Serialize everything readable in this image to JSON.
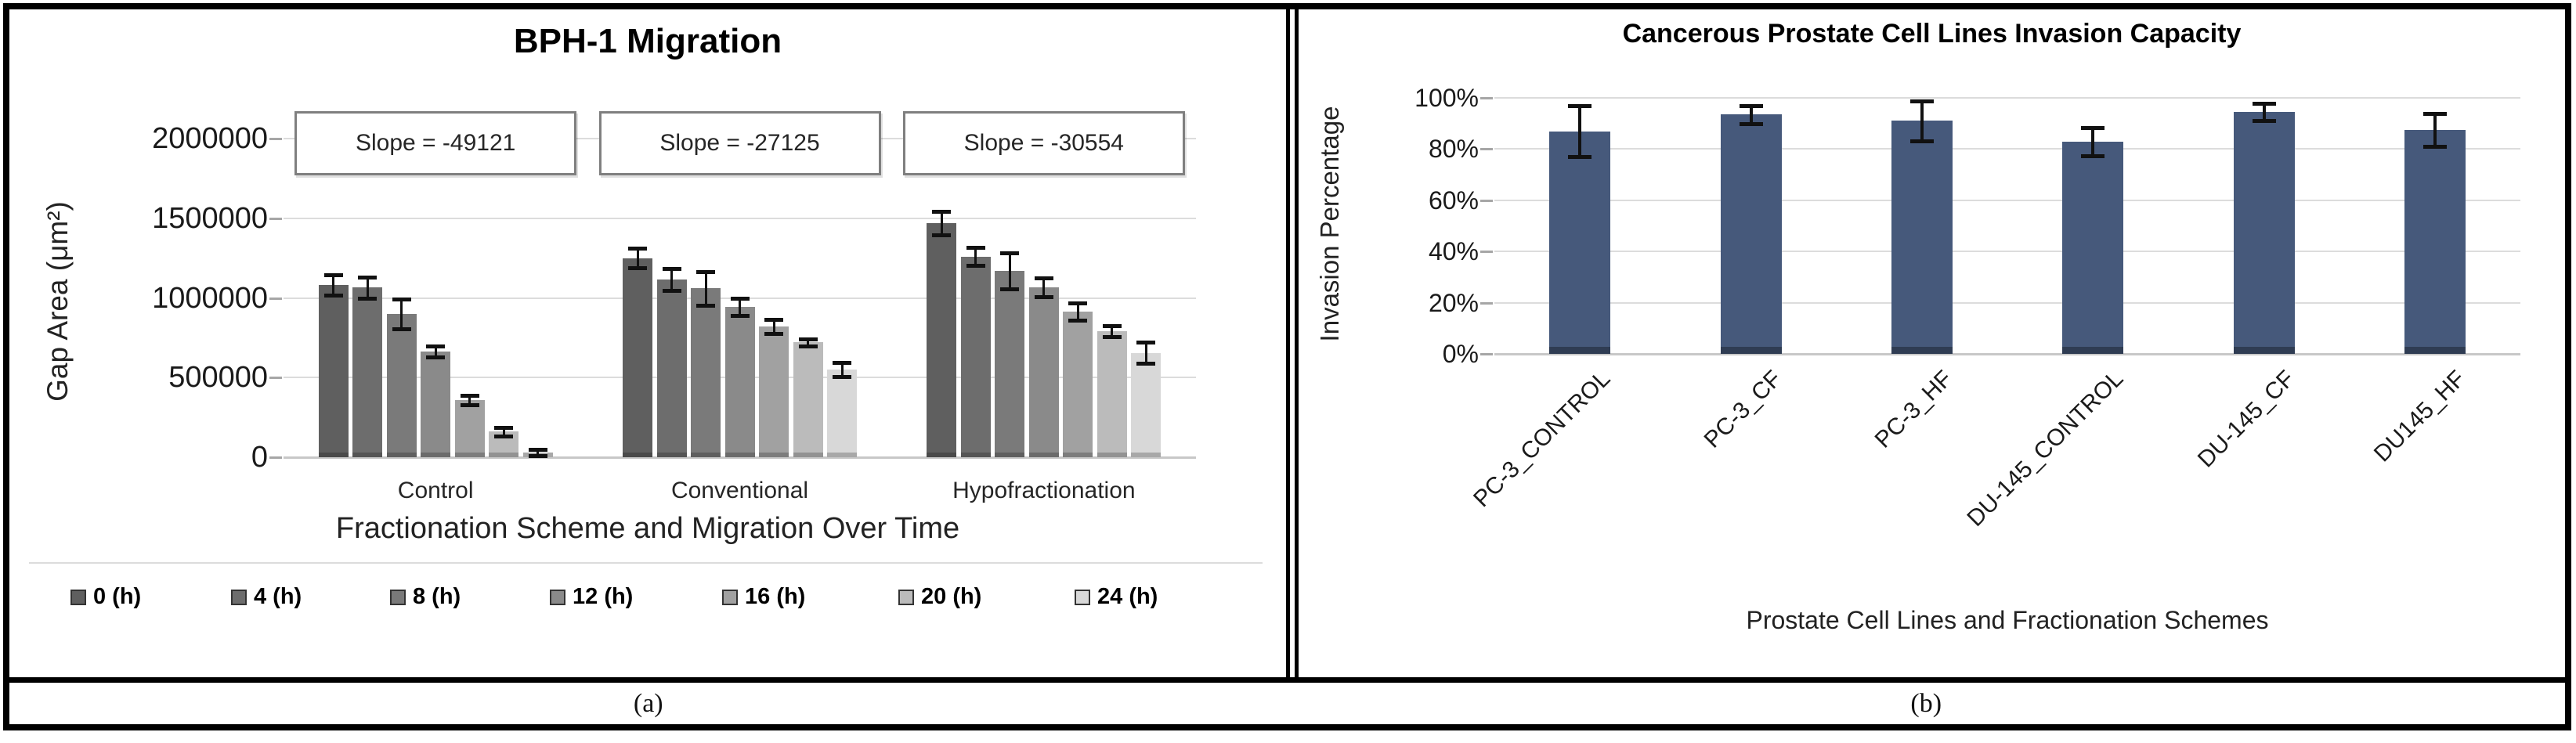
{
  "figure": {
    "captions": {
      "a": "(a)",
      "b": "(b)"
    }
  },
  "chart_data": [
    {
      "type": "bar",
      "panel": "a",
      "title": "BPH-1 Migration",
      "ylabel": "Gap Area (μm²)",
      "xlabel": "Fractionation Scheme and Migration Over Time",
      "ylim": [
        0,
        2000000
      ],
      "ytick_step": 500000,
      "ytick_labels": [
        "0",
        "500000",
        "1000000",
        "1500000",
        "2000000"
      ],
      "grid": true,
      "legend_position": "bottom",
      "categories": [
        "Control",
        "Conventional",
        "Hypofractionation"
      ],
      "annotations": [
        {
          "text": "Slope = -49121",
          "group": "Control"
        },
        {
          "text": "Slope = -27125",
          "group": "Conventional"
        },
        {
          "text": "Slope = -30554",
          "group": "Hypofractionation"
        }
      ],
      "series": [
        {
          "name": "0 (h)",
          "color": "#5F5F5F",
          "values": [
            1080000,
            1250000,
            1470000
          ],
          "errors": [
            65000,
            60000,
            75000
          ]
        },
        {
          "name": "4 (h)",
          "color": "#6D6D6D",
          "values": [
            1065000,
            1115000,
            1260000
          ],
          "errors": [
            65000,
            70000,
            55000
          ]
        },
        {
          "name": "8 (h)",
          "color": "#7A7A7A",
          "values": [
            900000,
            1060000,
            1170000
          ],
          "errors": [
            95000,
            105000,
            115000
          ]
        },
        {
          "name": "12 (h)",
          "color": "#8A8A8A",
          "values": [
            665000,
            945000,
            1065000
          ],
          "errors": [
            35000,
            55000,
            60000
          ]
        },
        {
          "name": "16 (h)",
          "color": "#A1A1A1",
          "values": [
            360000,
            820000,
            915000
          ],
          "errors": [
            30000,
            45000,
            55000
          ]
        },
        {
          "name": "20 (h)",
          "color": "#BBBBBB",
          "values": [
            160000,
            720000,
            790000
          ],
          "errors": [
            25000,
            20000,
            35000
          ]
        },
        {
          "name": "24 (h)",
          "color": "#D8D8D8",
          "values": [
            30000,
            550000,
            655000
          ],
          "errors": [
            18000,
            45000,
            65000
          ]
        }
      ]
    },
    {
      "type": "bar",
      "panel": "b",
      "title": "Cancerous Prostate Cell Lines Invasion Capacity",
      "ylabel": "Invasion Percentage",
      "xlabel": "Prostate Cell Lines and Fractionation Schemes",
      "ylim": [
        0,
        1
      ],
      "ytick_step": 0.2,
      "ytick_labels": [
        "0%",
        "20%",
        "40%",
        "60%",
        "80%",
        "100%"
      ],
      "grid": true,
      "bar_color": "#46597B",
      "categories": [
        "PC-3_CONTROL",
        "PC-3_CF",
        "PC-3_HF",
        "DU-145_CONTROL",
        "DU-145_CF",
        "DU145_HF"
      ],
      "values": [
        0.87,
        0.935,
        0.91,
        0.83,
        0.945,
        0.875
      ],
      "errors": [
        0.1,
        0.035,
        0.077,
        0.055,
        0.035,
        0.065
      ]
    }
  ]
}
